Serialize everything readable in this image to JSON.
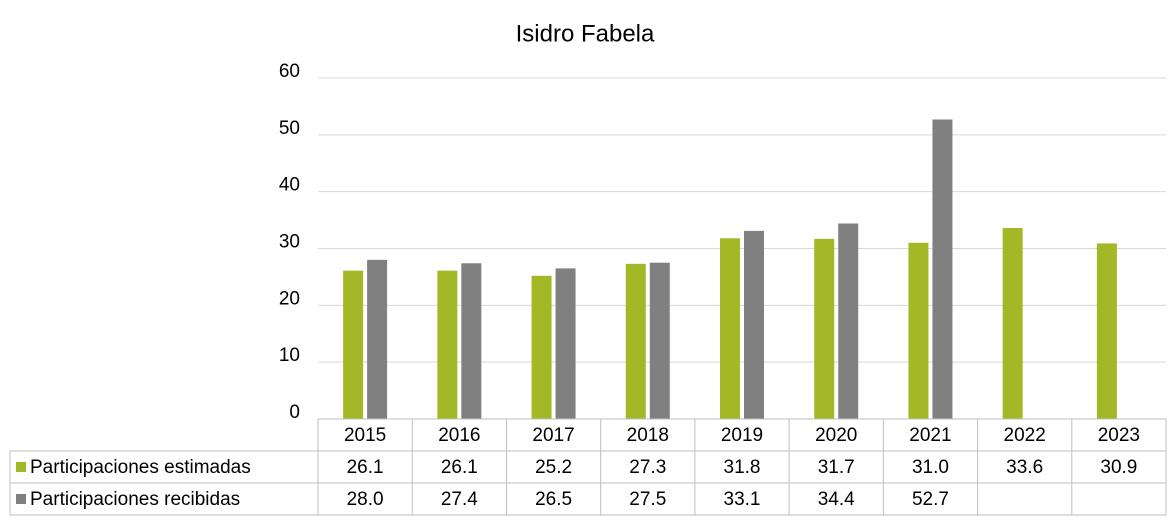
{
  "chart_data": {
    "type": "bar",
    "title": "Isidro Fabela",
    "categories": [
      "2015",
      "2016",
      "2017",
      "2018",
      "2019",
      "2020",
      "2021",
      "2022",
      "2023"
    ],
    "series": [
      {
        "name": "Participaciones estimadas",
        "color": "#a2b827",
        "values": [
          26.1,
          26.1,
          25.2,
          27.3,
          31.8,
          31.7,
          31.0,
          33.6,
          30.9
        ],
        "value_labels": [
          "26.1",
          "26.1",
          "25.2",
          "27.3",
          "31.8",
          "31.7",
          "31.0",
          "33.6",
          "30.9"
        ]
      },
      {
        "name": "Participaciones recibidas",
        "color": "#808080",
        "values": [
          28.0,
          27.4,
          26.5,
          27.5,
          33.1,
          34.4,
          52.7,
          null,
          null
        ],
        "value_labels": [
          "28.0",
          "27.4",
          "26.5",
          "27.5",
          "33.1",
          "34.4",
          "52.7",
          null,
          null
        ]
      }
    ],
    "ylim": [
      0,
      60
    ],
    "yticks": [
      0,
      10,
      20,
      30,
      40,
      50,
      60
    ],
    "grid": true
  }
}
